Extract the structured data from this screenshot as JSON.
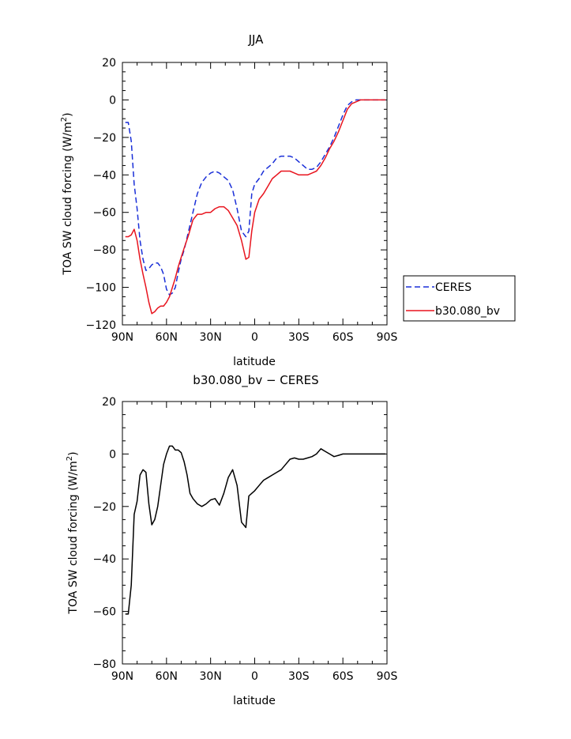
{
  "chart_data": [
    {
      "type": "line",
      "title": "JJA",
      "xlabel": "latitude",
      "ylabel": "TOA SW cloud forcing (W/m²)",
      "ylabel_parts": {
        "before": "TOA SW cloud forcing (W/m",
        "sup": "2",
        "after": ")"
      },
      "xlim": [
        90,
        -90
      ],
      "ylim": [
        -120,
        20
      ],
      "xticks": [
        {
          "value": 90,
          "label": "90N"
        },
        {
          "value": 60,
          "label": "60N"
        },
        {
          "value": 30,
          "label": "30N"
        },
        {
          "value": 0,
          "label": "0"
        },
        {
          "value": -30,
          "label": "30S"
        },
        {
          "value": -60,
          "label": "60S"
        },
        {
          "value": -90,
          "label": "90S"
        }
      ],
      "yticks": [
        {
          "value": 20,
          "label": "20"
        },
        {
          "value": 0,
          "label": "0"
        },
        {
          "value": -20,
          "label": "−20"
        },
        {
          "value": -40,
          "label": "−40"
        },
        {
          "value": -60,
          "label": "−60"
        },
        {
          "value": -80,
          "label": "−80"
        },
        {
          "value": -100,
          "label": "−100"
        },
        {
          "value": -120,
          "label": "−120"
        }
      ],
      "grid": false,
      "legend_position": "right",
      "series": [
        {
          "name": "CERES",
          "color": "#1a2fd8",
          "dash": "dashed",
          "x": [
            88,
            86,
            84,
            82,
            80,
            78,
            76,
            74,
            72,
            70,
            68,
            66,
            64,
            62,
            60,
            58,
            56,
            54,
            52,
            50,
            48,
            45,
            42,
            39,
            36,
            33,
            30,
            27,
            24,
            21,
            18,
            15,
            12,
            9,
            6,
            4,
            2,
            0,
            -3,
            -6,
            -9,
            -12,
            -15,
            -18,
            -21,
            -24,
            -27,
            -30,
            -33,
            -36,
            -39,
            -42,
            -45,
            -48,
            -51,
            -54,
            -57,
            -60,
            -63,
            -66,
            -69,
            -72,
            -75,
            -78,
            -81,
            -84,
            -87,
            -89
          ],
          "y": [
            -12,
            -12,
            -22,
            -45,
            -58,
            -75,
            -85,
            -91,
            -90,
            -88,
            -87,
            -87,
            -89,
            -93,
            -101,
            -104,
            -103,
            -100,
            -92,
            -85,
            -80,
            -70,
            -60,
            -50,
            -44,
            -41,
            -39,
            -38,
            -39,
            -41,
            -43,
            -48,
            -58,
            -70,
            -73,
            -70,
            -50,
            -45,
            -42,
            -38,
            -36,
            -34,
            -31,
            -30,
            -30,
            -30,
            -31,
            -33,
            -35,
            -37,
            -37,
            -36,
            -33,
            -29,
            -25,
            -20,
            -14,
            -8,
            -3,
            -1,
            0,
            0,
            0,
            0,
            0,
            0,
            0,
            0
          ]
        },
        {
          "name": "b30.080_bv",
          "color": "#e8141e",
          "dash": "solid",
          "x": [
            88,
            86,
            84,
            82,
            80,
            78,
            76,
            74,
            72,
            70,
            68,
            66,
            64,
            62,
            60,
            58,
            56,
            54,
            52,
            50,
            48,
            45,
            42,
            39,
            36,
            33,
            30,
            27,
            24,
            21,
            18,
            15,
            12,
            9,
            6,
            4,
            2,
            0,
            -3,
            -6,
            -9,
            -12,
            -15,
            -18,
            -21,
            -24,
            -27,
            -30,
            -33,
            -36,
            -39,
            -42,
            -45,
            -48,
            -51,
            -54,
            -57,
            -60,
            -63,
            -66,
            -69,
            -72,
            -75,
            -78,
            -81,
            -84,
            -87,
            -89
          ],
          "y": [
            -73,
            -73,
            -72,
            -69,
            -75,
            -85,
            -93,
            -100,
            -108,
            -114,
            -113,
            -111,
            -110,
            -110,
            -108,
            -105,
            -100,
            -95,
            -89,
            -84,
            -79,
            -72,
            -64,
            -61,
            -61,
            -60,
            -60,
            -58,
            -57,
            -57,
            -59,
            -63,
            -67,
            -75,
            -85,
            -84,
            -70,
            -60,
            -53,
            -50,
            -46,
            -42,
            -40,
            -38,
            -38,
            -38,
            -39,
            -40,
            -40,
            -40,
            -39,
            -38,
            -35,
            -31,
            -26,
            -22,
            -17,
            -11,
            -5,
            -2,
            -1,
            0,
            0,
            0,
            0,
            0,
            0,
            0
          ]
        }
      ]
    },
    {
      "type": "line",
      "title": "b30.080_bv − CERES",
      "xlabel": "latitude",
      "ylabel": "TOA SW cloud forcing (W/m²)",
      "ylabel_parts": {
        "before": "TOA SW cloud forcing (W/m",
        "sup": "2",
        "after": ")"
      },
      "xlim": [
        90,
        -90
      ],
      "ylim": [
        -80,
        20
      ],
      "xticks": [
        {
          "value": 90,
          "label": "90N"
        },
        {
          "value": 60,
          "label": "60N"
        },
        {
          "value": 30,
          "label": "30N"
        },
        {
          "value": 0,
          "label": "0"
        },
        {
          "value": -30,
          "label": "30S"
        },
        {
          "value": -60,
          "label": "60S"
        },
        {
          "value": -90,
          "label": "90S"
        }
      ],
      "yticks": [
        {
          "value": 20,
          "label": "20"
        },
        {
          "value": 0,
          "label": "0"
        },
        {
          "value": -20,
          "label": "−20"
        },
        {
          "value": -40,
          "label": "−40"
        },
        {
          "value": -60,
          "label": "−60"
        },
        {
          "value": -80,
          "label": "−80"
        }
      ],
      "grid": false,
      "series": [
        {
          "color": "#000000",
          "dash": "solid",
          "x": [
            88,
            86,
            84,
            82,
            80,
            78,
            76,
            74,
            72,
            70,
            68,
            66,
            64,
            62,
            60,
            58,
            56,
            54,
            52,
            50,
            48,
            46,
            44,
            42,
            39,
            36,
            33,
            30,
            27,
            24,
            21,
            18,
            15,
            12,
            9,
            6,
            4,
            2,
            0,
            -3,
            -6,
            -9,
            -12,
            -15,
            -18,
            -21,
            -24,
            -27,
            -30,
            -33,
            -36,
            -39,
            -42,
            -45,
            -48,
            -51,
            -54,
            -57,
            -60,
            -63,
            -66,
            -69,
            -72,
            -75,
            -78,
            -81,
            -84,
            -87,
            -89
          ],
          "y": [
            -61,
            -61,
            -50,
            -23,
            -18,
            -8,
            -6,
            -7,
            -19,
            -27,
            -25,
            -20,
            -12,
            -4,
            0,
            3,
            3,
            1.5,
            1.5,
            0.5,
            -3,
            -8,
            -15,
            -17,
            -19,
            -20,
            -19,
            -17.5,
            -17,
            -19.5,
            -15,
            -9,
            -6,
            -12,
            -26,
            -28,
            -16,
            -15,
            -14,
            -12,
            -10,
            -9,
            -8,
            -7,
            -6,
            -4,
            -2,
            -1.5,
            -2,
            -2,
            -1.5,
            -1,
            0,
            2,
            1,
            0,
            -1,
            -0.5,
            0,
            0,
            0,
            0,
            0,
            0,
            0,
            0,
            0,
            0,
            0
          ]
        }
      ]
    }
  ]
}
